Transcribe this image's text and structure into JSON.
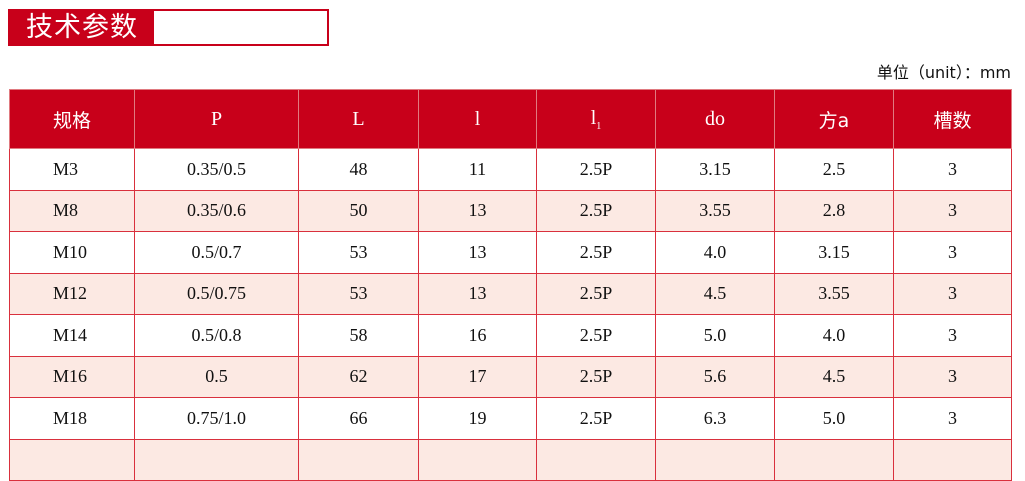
{
  "header": {
    "title": "技术参数",
    "unit": "单位（unit）：mm"
  },
  "table": {
    "columns": [
      "规格",
      "P",
      "L",
      "l",
      {
        "text": "l",
        "sub": "1"
      },
      "do",
      "方a",
      "槽数"
    ],
    "rows": [
      [
        "M3",
        "0.35/0.5",
        "48",
        "11",
        "2.5P",
        "3.15",
        "2.5",
        "3"
      ],
      [
        "M8",
        "0.35/0.6",
        "50",
        "13",
        "2.5P",
        "3.55",
        "2.8",
        "3"
      ],
      [
        "M10",
        "0.5/0.7",
        "53",
        "13",
        "2.5P",
        "4.0",
        "3.15",
        "3"
      ],
      [
        "M12",
        "0.5/0.75",
        "53",
        "13",
        "2.5P",
        "4.5",
        "3.55",
        "3"
      ],
      [
        "M14",
        "0.5/0.8",
        "58",
        "16",
        "2.5P",
        "5.0",
        "4.0",
        "3"
      ],
      [
        "M16",
        "0.5",
        "62",
        "17",
        "2.5P",
        "5.6",
        "4.5",
        "3"
      ],
      [
        "M18",
        "0.75/1.0",
        "66",
        "19",
        "2.5P",
        "6.3",
        "5.0",
        "3"
      ]
    ]
  }
}
